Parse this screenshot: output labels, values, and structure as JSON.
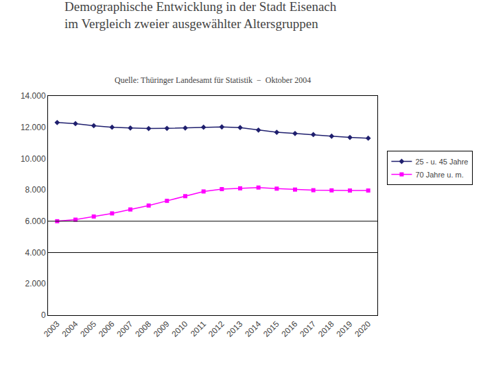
{
  "chart_data": {
    "type": "line",
    "title": "Demographische Entwicklung in der Stadt Eisenach\nim Vergleich zweier ausgewählter Altersgruppen",
    "subtitle": "Quelle: Thüringer Landesamt für Statistik  −  Oktober 2004",
    "x": [
      2003,
      2004,
      2005,
      2006,
      2007,
      2008,
      2009,
      2010,
      2011,
      2012,
      2013,
      2014,
      2015,
      2016,
      2017,
      2018,
      2019,
      2020
    ],
    "series": [
      {
        "name": "25 - u. 45 Jahre",
        "color": "#1f1f6e",
        "marker": "diamond",
        "values": [
          12300,
          12230,
          12100,
          12000,
          11950,
          11920,
          11930,
          11950,
          12000,
          12020,
          11980,
          11820,
          11680,
          11600,
          11530,
          11430,
          11350,
          11300
        ]
      },
      {
        "name": "70 Jahre u. m.",
        "color": "#ff00ff",
        "marker": "square",
        "values": [
          6000,
          6100,
          6300,
          6500,
          6750,
          7000,
          7300,
          7600,
          7900,
          8050,
          8100,
          8150,
          8080,
          8020,
          7980,
          7970,
          7960,
          7960
        ]
      }
    ],
    "hlines": [
      4000,
      6000
    ],
    "xlim": [
      2002.5,
      2020.5
    ],
    "xticks": [
      2003,
      2004,
      2005,
      2006,
      2007,
      2008,
      2009,
      2010,
      2011,
      2012,
      2013,
      2014,
      2015,
      2016,
      2017,
      2018,
      2019,
      2020
    ],
    "ylim": [
      0,
      14000
    ],
    "yticks": [
      0,
      {
        "value": 2000,
        "label": "2.000"
      },
      {
        "value": 4000,
        "label": "4.000"
      },
      {
        "value": 6000,
        "label": "6.000"
      },
      {
        "value": 8000,
        "label": "8.000"
      },
      {
        "value": 10000,
        "label": "10.000"
      },
      {
        "value": 12000,
        "label": "12.000"
      },
      {
        "value": 14000,
        "label": "14.000"
      }
    ],
    "grid": false,
    "legend": "right"
  }
}
